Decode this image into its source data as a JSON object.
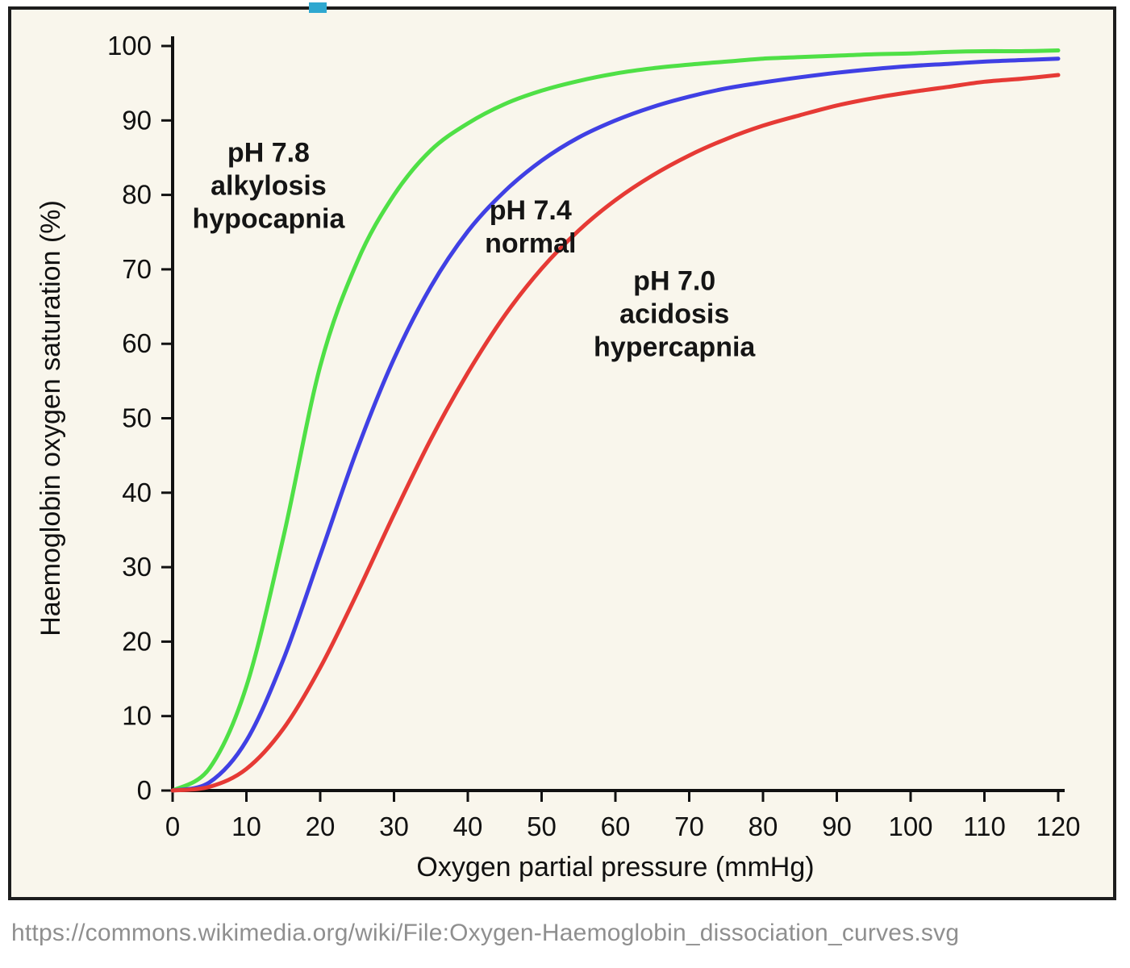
{
  "page": {
    "caption": "https://commons.wikimedia.org/wiki/File:Oxygen-Haemoglobin_dissociation_curves.svg"
  },
  "colors": {
    "background": "#f9f6ec",
    "frame_border": "#1d1d1d",
    "axis": "#111111",
    "annotation_text": "#151515",
    "caption_text": "#8f8f8f",
    "artifact_mark": "#2fa8d0"
  },
  "chart_data": {
    "type": "line",
    "xlabel": "Oxygen partial pressure (mmHg)",
    "ylabel": "Haemoglobin oxygen saturation (%)",
    "xlim": [
      0,
      120
    ],
    "ylim": [
      0,
      100
    ],
    "x_ticks": [
      0,
      10,
      20,
      30,
      40,
      50,
      60,
      70,
      80,
      90,
      100,
      110,
      120
    ],
    "y_ticks": [
      0,
      10,
      20,
      30,
      40,
      50,
      60,
      70,
      80,
      90,
      100
    ],
    "grid": false,
    "legend": "none",
    "x": [
      0,
      5,
      10,
      15,
      20,
      25,
      30,
      35,
      40,
      45,
      50,
      55,
      60,
      65,
      70,
      75,
      80,
      85,
      90,
      95,
      100,
      105,
      110,
      115,
      120
    ],
    "series": [
      {
        "name": "pH 7.8 alkylosis hypocapnia",
        "color": "#4fe046",
        "values": [
          0,
          3.0,
          14.0,
          34.0,
          57.0,
          71.0,
          80.0,
          86.0,
          89.6,
          92.2,
          94.0,
          95.3,
          96.3,
          97.0,
          97.5,
          97.9,
          98.3,
          98.5,
          98.7,
          98.9,
          99.0,
          99.2,
          99.3,
          99.3,
          99.4
        ],
        "annotation": {
          "x": 13,
          "y": 80,
          "lines": [
            "pH 7.8",
            "alkylosis",
            "hypocapnia"
          ]
        }
      },
      {
        "name": "pH 7.4 normal",
        "color": "#4040e4",
        "values": [
          0,
          1.1,
          6.7,
          17.6,
          31.6,
          45.8,
          58.0,
          67.7,
          75.1,
          80.5,
          84.6,
          87.7,
          90.0,
          91.8,
          93.2,
          94.3,
          95.1,
          95.8,
          96.4,
          96.9,
          97.3,
          97.6,
          97.9,
          98.1,
          98.3
        ],
        "annotation": {
          "x": 48.5,
          "y": 74.5,
          "lines": [
            "pH 7.4",
            "normal"
          ]
        }
      },
      {
        "name": "pH 7.0 acidosis hypercapnia",
        "color": "#e63a35",
        "values": [
          0,
          0.5,
          2.9,
          8.3,
          16.5,
          26.5,
          37.1,
          47.2,
          56.1,
          63.8,
          70.1,
          75.2,
          79.3,
          82.6,
          85.3,
          87.5,
          89.3,
          90.7,
          92.0,
          93.0,
          93.8,
          94.5,
          95.2,
          95.6,
          96.1
        ],
        "annotation": {
          "x": 68,
          "y": 62.8,
          "lines": [
            "pH 7.0",
            "acidosis",
            "hypercapnia"
          ]
        }
      }
    ]
  }
}
